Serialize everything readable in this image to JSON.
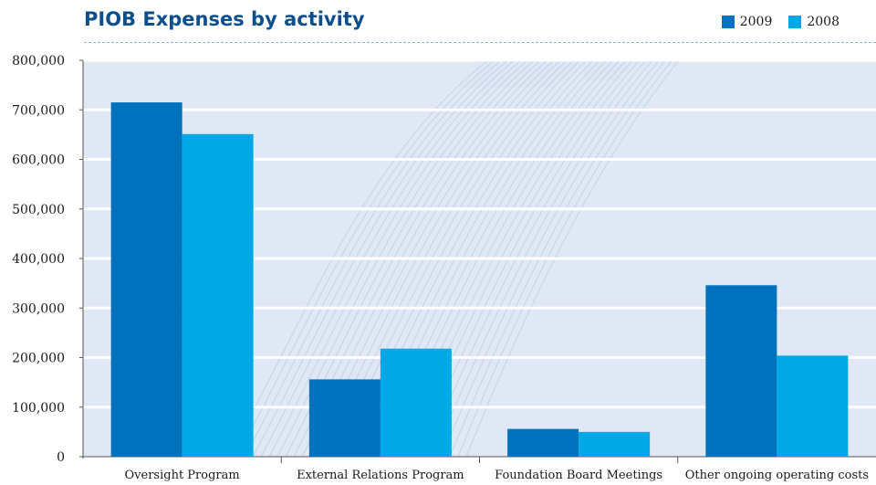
{
  "title": "PIOB Expenses by activity",
  "legend": [
    {
      "label": "2009",
      "color": "#0071bc"
    },
    {
      "label": "2008",
      "color": "#00a8e8"
    }
  ],
  "colors": {
    "plot_bg": "#dfe8f4",
    "grid": "#ffffff",
    "axis": "#555555"
  },
  "chart_data": {
    "type": "bar",
    "title": "PIOB Expenses by activity",
    "categories": [
      "Oversight Program",
      "External Relations Program",
      "Foundation Board Meetings",
      "Other ongoing operating costs"
    ],
    "series": [
      {
        "name": "2009",
        "values": [
          715000,
          156000,
          56000,
          346000
        ],
        "color": "#0071bc"
      },
      {
        "name": "2008",
        "values": [
          651000,
          218000,
          50000,
          204000
        ],
        "color": "#00a8e8"
      }
    ],
    "ylim": [
      0,
      800000
    ],
    "yticks": [
      0,
      100000,
      200000,
      300000,
      400000,
      500000,
      600000,
      700000,
      800000
    ],
    "ytick_labels": [
      "0",
      "100,000",
      "200,000",
      "300,000",
      "400,000",
      "500,000",
      "600,000",
      "700,000",
      "800,000"
    ],
    "grid": true,
    "legend_position": "top-right"
  }
}
